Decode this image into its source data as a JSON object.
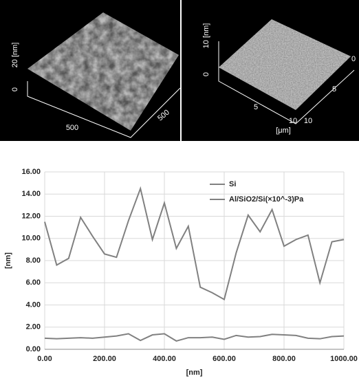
{
  "images": {
    "left": {
      "z_label": "20 [nm]",
      "z_zero": "0",
      "x_tick": "500",
      "y_tick": "500"
    },
    "right": {
      "z_label": "10 [nm]",
      "z_zero": "0",
      "corner_zero": "0",
      "y_tick_5": "5",
      "x_tick_5": "5",
      "x_tick_10": "10",
      "y_tick_10": "10",
      "unit": "[μm]"
    }
  },
  "chart_data": {
    "type": "line",
    "x": [
      0,
      40,
      80,
      120,
      160,
      200,
      240,
      280,
      320,
      360,
      400,
      440,
      480,
      520,
      560,
      600,
      640,
      680,
      720,
      760,
      800,
      840,
      880,
      920,
      960,
      1000
    ],
    "series": [
      {
        "name": "Si",
        "color": "#808080",
        "values": [
          11.5,
          7.6,
          8.2,
          11.9,
          10.2,
          8.6,
          8.3,
          11.6,
          14.5,
          9.9,
          13.2,
          9.1,
          11.1,
          5.6,
          5.1,
          4.5,
          8.7,
          12.1,
          10.6,
          12.6,
          9.3,
          9.9,
          10.3,
          6.0,
          9.7,
          9.9
        ]
      },
      {
        "name": "Al/SiO2/Si(×10^-3)Pa",
        "color": "#808080",
        "values": [
          1.0,
          0.95,
          1.0,
          1.05,
          1.0,
          1.1,
          1.2,
          1.4,
          0.8,
          1.3,
          1.4,
          0.75,
          1.05,
          1.05,
          1.1,
          0.9,
          1.25,
          1.1,
          1.15,
          1.35,
          1.3,
          1.25,
          1.0,
          0.95,
          1.15,
          1.2
        ]
      }
    ],
    "x_label": "[nm]",
    "y_label": "[nm]",
    "xlim": [
      0,
      1000
    ],
    "xticks": [
      {
        "value": 0,
        "label": "0.00"
      },
      {
        "value": 200,
        "label": "200.00"
      },
      {
        "value": 400,
        "label": "400.00"
      },
      {
        "value": 600,
        "label": "600.00"
      },
      {
        "value": 800,
        "label": "800.00"
      },
      {
        "value": 1000,
        "label": "1000.00"
      }
    ],
    "ylim": [
      0,
      16
    ],
    "yticks": [
      {
        "value": 0,
        "label": "0.00"
      },
      {
        "value": 2,
        "label": "2.00"
      },
      {
        "value": 4,
        "label": "4.00"
      },
      {
        "value": 6,
        "label": "6.00"
      },
      {
        "value": 8,
        "label": "8.00"
      },
      {
        "value": 10,
        "label": "10.00"
      },
      {
        "value": 12,
        "label": "12.00"
      },
      {
        "value": 14,
        "label": "14.00"
      },
      {
        "value": 16,
        "label": "16.00"
      }
    ],
    "grid": true,
    "legend": "top-right"
  }
}
